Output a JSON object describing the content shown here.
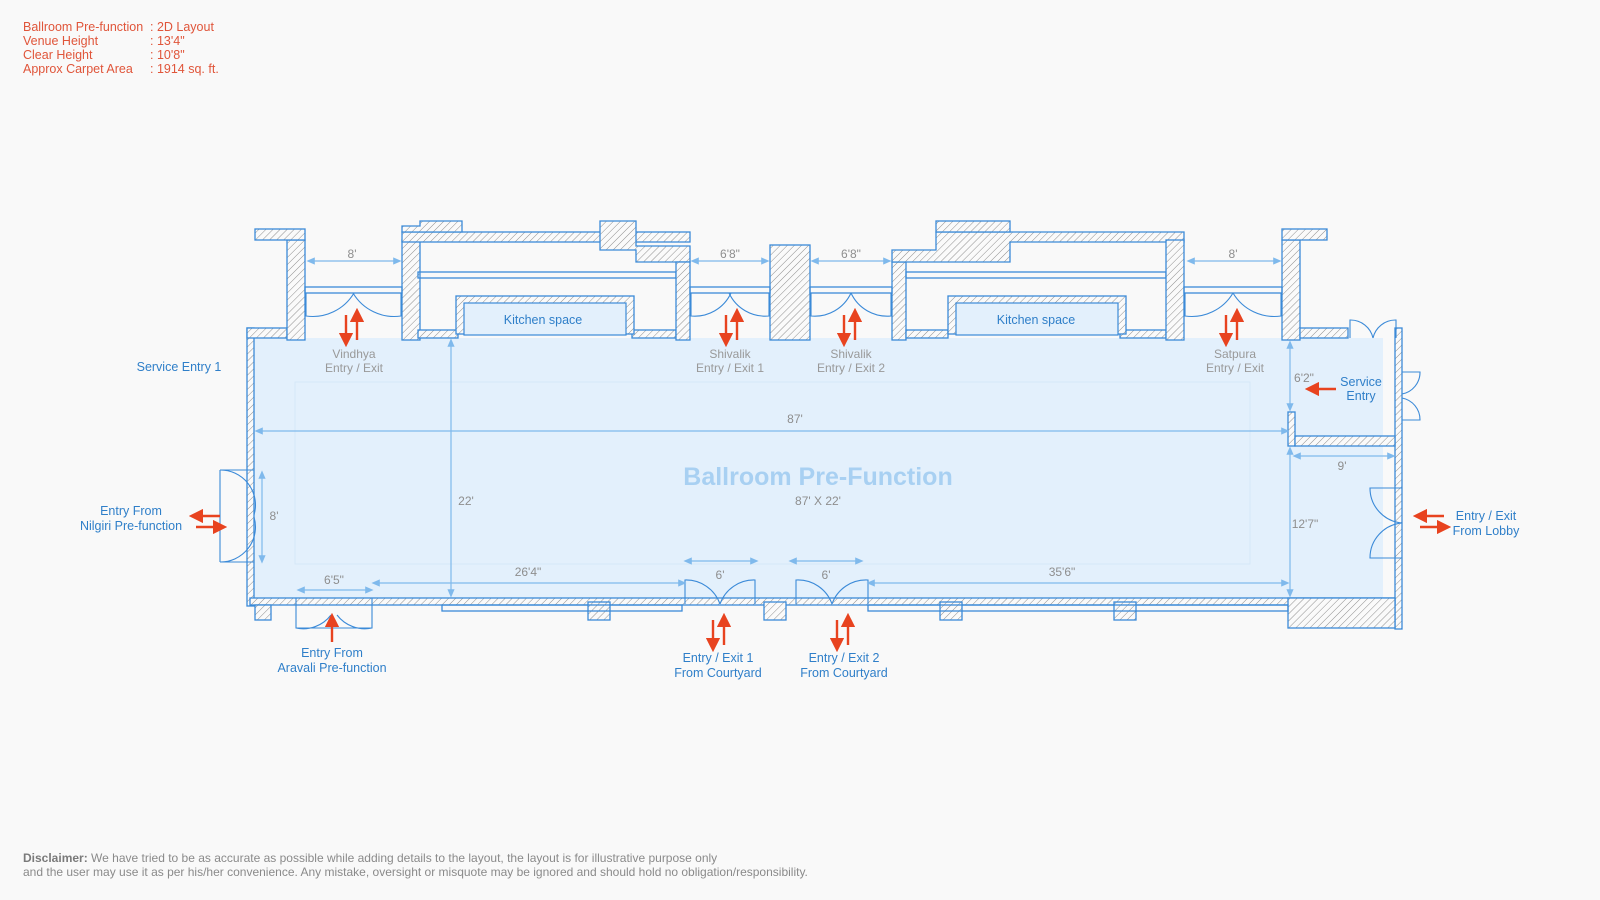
{
  "info": [
    {
      "k": "Ballroom Pre-function",
      "v": ": 2D Layout"
    },
    {
      "k": "Venue Height",
      "v": ": 13'4\""
    },
    {
      "k": "Clear Height",
      "v": ": 10'8\""
    },
    {
      "k": "Approx Carpet Area",
      "v": ": 1914 sq. ft."
    }
  ],
  "room": {
    "title": "Ballroom Pre-Function",
    "size": "87' X 22'"
  },
  "kitchens": [
    "Kitchen space",
    "Kitchen space"
  ],
  "doors_top": [
    {
      "name": "Vindhya",
      "sub": "Entry / Exit"
    },
    {
      "name": "Shivalik",
      "sub": "Entry / Exit 1"
    },
    {
      "name": "Shivalik",
      "sub": "Entry / Exit 2"
    },
    {
      "name": "Satpura",
      "sub": "Entry / Exit"
    }
  ],
  "labels": {
    "service_entry_1": "Service Entry 1",
    "service_entry": [
      "Service",
      "Entry"
    ],
    "nilgiri": [
      "Entry From",
      "Nilgiri Pre-function"
    ],
    "lobby": [
      "Entry / Exit",
      "From Lobby"
    ],
    "aravali": [
      "Entry From",
      "Aravali Pre-function"
    ],
    "courtyard1": [
      "Entry / Exit 1",
      "From Courtyard"
    ],
    "courtyard2": [
      "Entry / Exit 2",
      "From Courtyard"
    ]
  },
  "dims": {
    "top_8a": "8'",
    "top_68a": "6'8\"",
    "top_68b": "6'8\"",
    "top_8b": "8'",
    "length": "87'",
    "depth": "22'",
    "left_8": "8'",
    "bot_65": "6'5\"",
    "bot_264": "26'4\"",
    "bot_6a": "6'",
    "bot_6b": "6'",
    "bot_356": "35'6\"",
    "right_62": "6'2\"",
    "right_9": "9'",
    "right_127": "12'7\""
  },
  "disclaimer": {
    "label": "Disclaimer:",
    "line1": "We have tried to be as accurate as possible while adding details to the layout, the layout is for illustrative purpose only",
    "line2": "and the user may use it as per his/her convenience. Any mistake, oversight or misquote may be ignored and should hold no obligation/responsibility."
  },
  "colors": {
    "wall": "#3b8ad8",
    "floor": "#e3f0fc",
    "dim": "#7fb9ec",
    "arrow": "#e8431f",
    "info": "#e0553a"
  }
}
